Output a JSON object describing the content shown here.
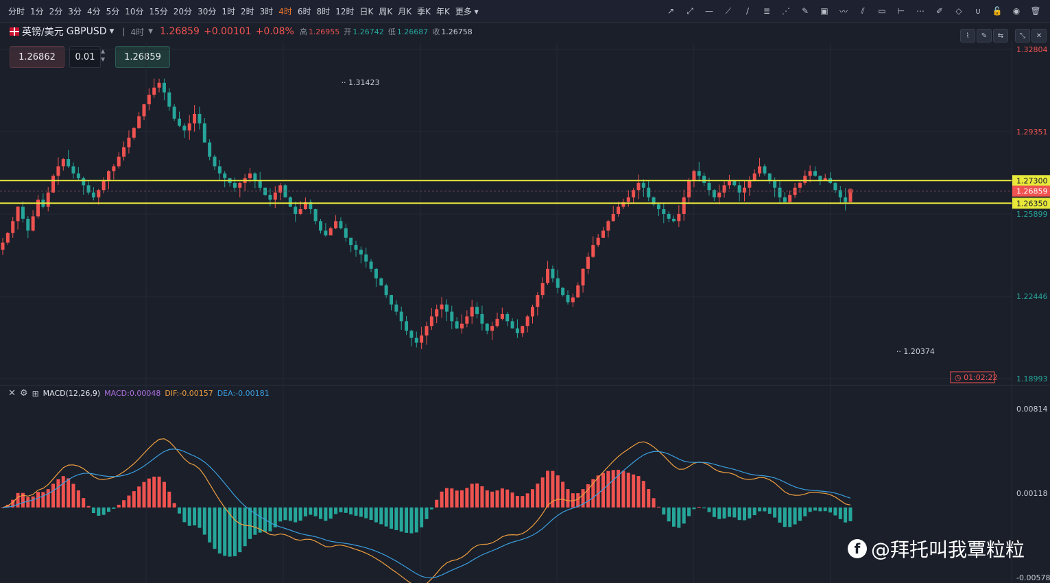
{
  "timeframes": [
    "分时",
    "1分",
    "2分",
    "3分",
    "4分",
    "5分",
    "10分",
    "15分",
    "20分",
    "30分",
    "1时",
    "2时",
    "3时",
    "4时",
    "6时",
    "8时",
    "12时",
    "日K",
    "周K",
    "月K",
    "季K",
    "年K",
    "更多"
  ],
  "active_timeframe": "4时",
  "tools": [
    "ray-icon",
    "arrow-line-icon",
    "horizontal-line-icon",
    "segment-icon",
    "trend-line-icon",
    "fib-icon",
    "fan-icon",
    "brush-icon",
    "image-icon",
    "polyline-icon",
    "parallel-icon",
    "rect-icon",
    "cross-line-icon",
    "more-dots-icon",
    "edit-icon",
    "eraser-icon",
    "magnet-icon",
    "lock-icon",
    "eye-icon",
    "trash-icon"
  ],
  "symbol": {
    "name": "英镑/美元",
    "code": "GBPUSD",
    "period": "4时",
    "price": "1.26859",
    "change": "+0.00101",
    "change_pct": "+0.08%",
    "high_label": "高",
    "high": "1.26955",
    "open_label": "开",
    "open": "1.26742",
    "low_label": "低",
    "low": "1.26687",
    "close_label": "收",
    "close": "1.26758"
  },
  "order": {
    "sell": "1.26862",
    "lot": "0.01",
    "buy": "1.26859"
  },
  "colors": {
    "up": "#ef5350",
    "down": "#26a69a",
    "level": "#e8e83a",
    "dif": "#f0a040",
    "dea": "#3aa0e0",
    "macd": "#b070e0"
  },
  "chart_data": [
    {
      "type": "candlestick",
      "ylim": [
        1.18993,
        1.32804
      ],
      "yticks": [
        "1.32804",
        "1.29351",
        "1.25899",
        "1.22446",
        "1.18993"
      ],
      "price_tags": [
        {
          "value": "1.27300",
          "kind": "level"
        },
        {
          "value": "1.26859",
          "kind": "current"
        },
        {
          "value": "1.26350",
          "kind": "level"
        }
      ],
      "horizontal_levels": [
        1.273,
        1.2635
      ],
      "current_price": 1.26859,
      "annotations": [
        {
          "text": "1.31423",
          "value": 1.31423,
          "bar_index": 66
        },
        {
          "text": "1.20374",
          "value": 1.20374,
          "bar_index": 176
        }
      ],
      "countdown": "01:02:22",
      "bars_close": [
        1.247,
        1.251,
        1.256,
        1.262,
        1.257,
        1.252,
        1.258,
        1.265,
        1.262,
        1.268,
        1.275,
        1.279,
        1.282,
        1.279,
        1.276,
        1.274,
        1.271,
        1.268,
        1.266,
        1.269,
        1.273,
        1.277,
        1.279,
        1.283,
        1.287,
        1.291,
        1.295,
        1.3,
        1.305,
        1.309,
        1.312,
        1.314,
        1.31,
        1.304,
        1.299,
        1.296,
        1.294,
        1.297,
        1.301,
        1.297,
        1.289,
        1.283,
        1.279,
        1.276,
        1.274,
        1.272,
        1.27,
        1.272,
        1.274,
        1.276,
        1.273,
        1.27,
        1.267,
        1.265,
        1.268,
        1.271,
        1.266,
        1.262,
        1.259,
        1.261,
        1.264,
        1.261,
        1.256,
        1.252,
        1.25,
        1.253,
        1.256,
        1.253,
        1.249,
        1.246,
        1.244,
        1.242,
        1.239,
        1.236,
        1.232,
        1.229,
        1.225,
        1.221,
        1.218,
        1.214,
        1.21,
        1.207,
        1.205,
        1.208,
        1.212,
        1.216,
        1.219,
        1.221,
        1.218,
        1.214,
        1.211,
        1.213,
        1.216,
        1.22,
        1.217,
        1.213,
        1.21,
        1.212,
        1.215,
        1.217,
        1.214,
        1.211,
        1.209,
        1.212,
        1.216,
        1.22,
        1.225,
        1.23,
        1.236,
        1.232,
        1.228,
        1.225,
        1.222,
        1.224,
        1.229,
        1.236,
        1.241,
        1.246,
        1.249,
        1.252,
        1.256,
        1.259,
        1.262,
        1.264,
        1.266,
        1.269,
        1.272,
        1.27,
        1.266,
        1.263,
        1.261,
        1.259,
        1.257,
        1.256,
        1.259,
        1.266,
        1.273,
        1.277,
        1.275,
        1.272,
        1.269,
        1.266,
        1.268,
        1.271,
        1.273,
        1.271,
        1.268,
        1.27,
        1.273,
        1.276,
        1.279,
        1.276,
        1.273,
        1.27,
        1.266,
        1.264,
        1.267,
        1.27,
        1.272,
        1.275,
        1.277,
        1.275,
        1.273,
        1.274,
        1.272,
        1.269,
        1.266,
        1.264,
        1.268
      ]
    },
    {
      "type": "macd",
      "title": "MACD(12,26,9)",
      "macd_label": "MACD:0.00048",
      "dif_label": "DIF:-0.00157",
      "dea_label": "DEA:-0.00181",
      "ylim": [
        -0.00578,
        0.00814
      ],
      "yticks": [
        "0.00814",
        "0.00118",
        "-0.00578"
      ]
    }
  ],
  "watermark": "@拜托叫我覃粒粒"
}
